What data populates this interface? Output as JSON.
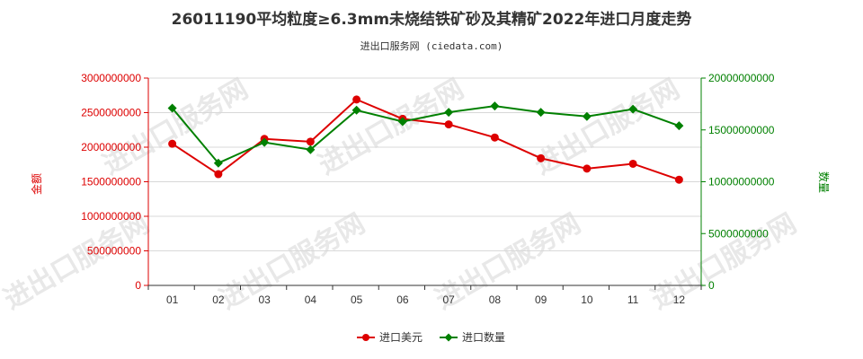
{
  "title": "26011190平均粒度≥6.3mm未烧结铁矿砂及其精矿2022年进口月度走势",
  "subtitle": "进出口服务网 (ciedata.com)",
  "watermark": "进出口服务网",
  "colors": {
    "left": "#dd0000",
    "right": "#008000",
    "grid": "#d8d8d8",
    "axis": "#333333"
  },
  "chart_data": {
    "type": "line",
    "categories": [
      "01",
      "02",
      "03",
      "04",
      "05",
      "06",
      "07",
      "08",
      "09",
      "10",
      "11",
      "12"
    ],
    "left_axis": {
      "title": "金额",
      "ylim": [
        0,
        3000000000
      ],
      "ticks": [
        0,
        500000000,
        1000000000,
        1500000000,
        2000000000,
        2500000000,
        3000000000
      ],
      "tick_labels": [
        "0",
        "500000000",
        "1000000000",
        "1500000000",
        "2000000000",
        "2500000000",
        "3000000000"
      ]
    },
    "right_axis": {
      "title": "数量",
      "ylim": [
        0,
        20000000000
      ],
      "ticks": [
        0,
        5000000000,
        10000000000,
        15000000000,
        20000000000
      ],
      "tick_labels": [
        "0",
        "5000000000",
        "10000000000",
        "15000000000",
        "20000000000"
      ]
    },
    "series": [
      {
        "name": "进口美元",
        "axis": "left",
        "color": "#dd0000",
        "values": [
          2050000000,
          1610000000,
          2120000000,
          2080000000,
          2690000000,
          2410000000,
          2330000000,
          2140000000,
          1840000000,
          1690000000,
          1760000000,
          1530000000
        ]
      },
      {
        "name": "进口数量",
        "axis": "right",
        "color": "#008000",
        "values": [
          17100000000,
          11800000000,
          13800000000,
          13100000000,
          16900000000,
          15800000000,
          16700000000,
          17300000000,
          16700000000,
          16300000000,
          17000000000,
          15400000000
        ]
      }
    ],
    "grid": true,
    "legend": "bottom-center"
  }
}
